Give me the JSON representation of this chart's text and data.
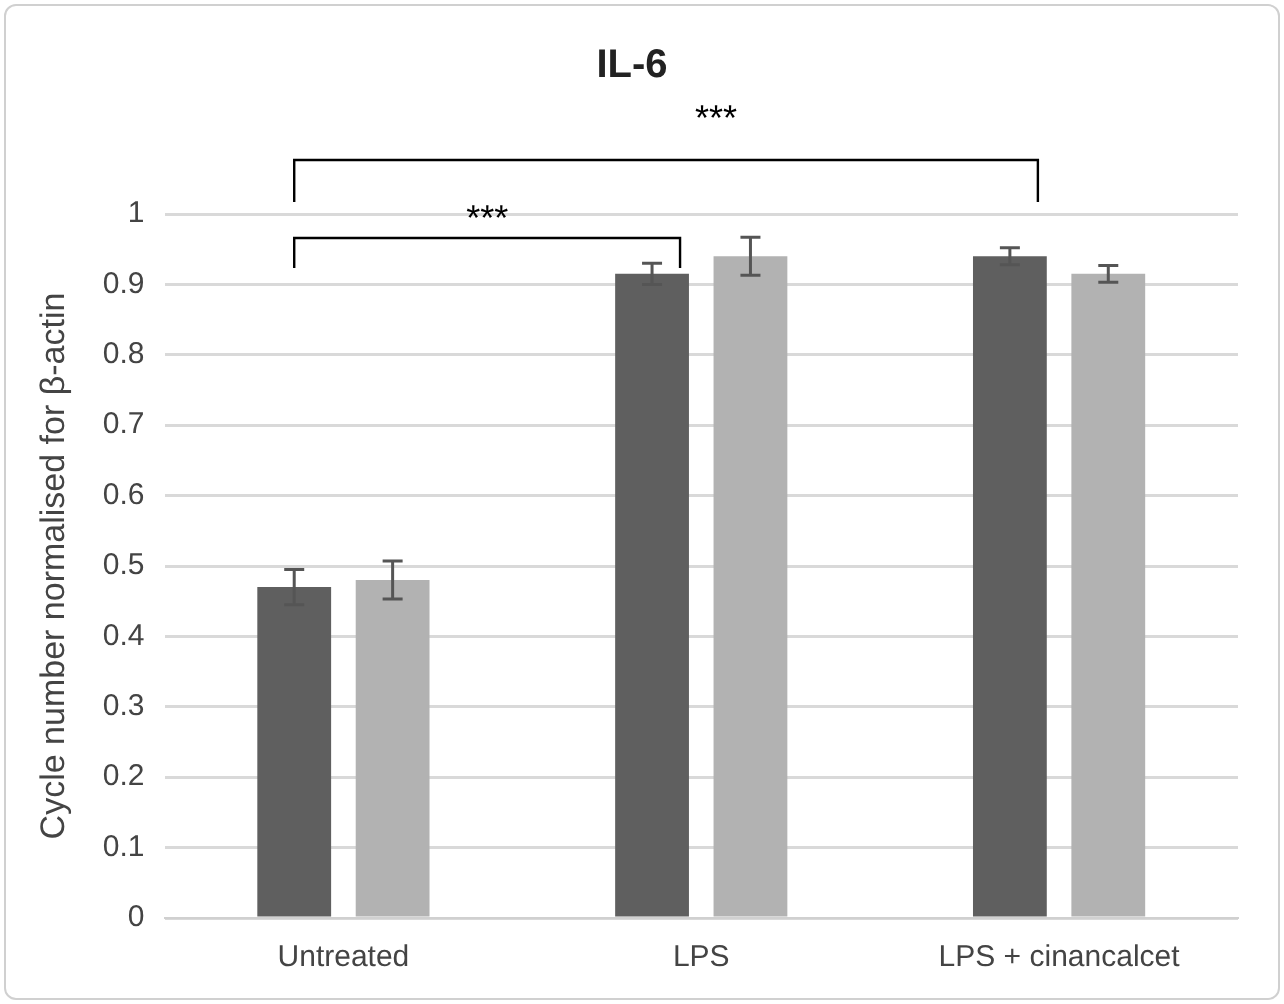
{
  "chart_data": {
    "type": "bar",
    "title": "IL-6",
    "ylabel": "Cycle number normalised for β-actin",
    "categories": [
      "Untreated",
      "LPS",
      "LPS + cinancalcet"
    ],
    "series": [
      {
        "color": "#5f5f5f",
        "values": [
          0.47,
          0.915,
          0.94
        ],
        "errors": [
          0.025,
          0.015,
          0.012
        ]
      },
      {
        "color": "#b2b2b2",
        "values": [
          0.48,
          0.94,
          0.915
        ],
        "errors": [
          0.027,
          0.027,
          0.012
        ]
      }
    ],
    "ylim": [
      0,
      1
    ],
    "yticks": [
      0,
      0.1,
      0.2,
      0.3,
      0.4,
      0.5,
      0.6,
      0.7,
      0.8,
      0.9,
      1
    ],
    "grid": "y",
    "legend": false,
    "annotations": [
      "***",
      "***"
    ]
  }
}
